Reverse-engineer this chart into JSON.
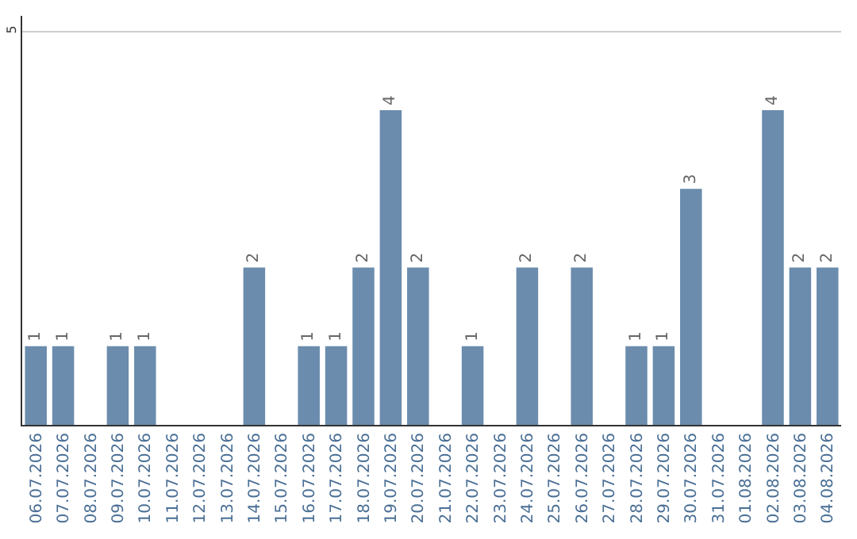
{
  "chart_data": {
    "type": "bar",
    "categories": [
      "06.07.2026",
      "07.07.2026",
      "08.07.2026",
      "09.07.2026",
      "10.07.2026",
      "11.07.2026",
      "12.07.2026",
      "13.07.2026",
      "14.07.2026",
      "15.07.2026",
      "16.07.2026",
      "17.07.2026",
      "18.07.2026",
      "19.07.2026",
      "20.07.2026",
      "21.07.2026",
      "22.07.2026",
      "23.07.2026",
      "24.07.2026",
      "25.07.2026",
      "26.07.2026",
      "27.07.2026",
      "28.07.2026",
      "29.07.2026",
      "30.07.2026",
      "31.07.2026",
      "01.08.2026",
      "02.08.2026",
      "03.08.2026",
      "04.08.2026"
    ],
    "values": [
      1,
      1,
      0,
      1,
      1,
      0,
      0,
      0,
      2,
      0,
      1,
      1,
      2,
      4,
      2,
      0,
      1,
      0,
      2,
      0,
      2,
      0,
      1,
      1,
      3,
      0,
      0,
      4,
      2,
      2
    ],
    "value_labels": [
      "1",
      "1",
      null,
      "1",
      "1",
      null,
      null,
      null,
      "2",
      null,
      "1",
      "1",
      "2",
      "4",
      "2",
      null,
      "1",
      null,
      "2",
      null,
      "2",
      null,
      "1",
      "1",
      "3",
      null,
      null,
      "4",
      "2",
      "2"
    ],
    "color": "#6b8cad",
    "ylim": [
      0,
      5.2
    ],
    "yticks": [
      5
    ],
    "grid": "y"
  }
}
